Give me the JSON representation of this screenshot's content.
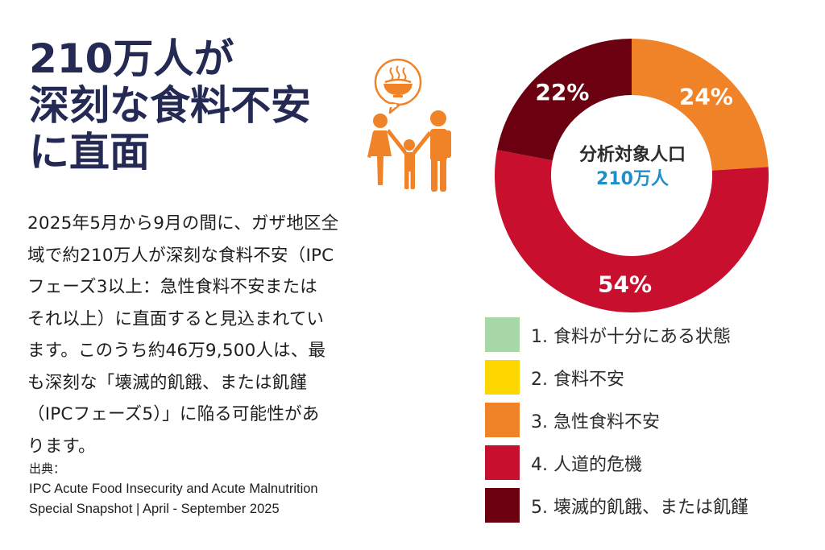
{
  "headline": {
    "lines": [
      "210万人が",
      "深刻な食料不安",
      "に直面"
    ]
  },
  "body": {
    "lines": [
      "2025年5月から9月の間に、ガザ地区全",
      "域で約210万人が深刻な食料不安（IPC",
      "フェーズ3以上：急性食料不安または",
      "それ以上）に直面すると見込まれてい",
      "ます。このうち約46万9,500人は、最",
      "も深刻な「壊滅的飢餓、または飢饉",
      "（IPCフェーズ5）」に陥る可能性があ",
      "ります。"
    ]
  },
  "source": {
    "label": "出典：",
    "lines": [
      "IPC Acute Food Insecurity and Acute Malnutrition",
      "Special Snapshot | April - September 2025"
    ]
  },
  "icons": {
    "family": "family-icon",
    "rice_bowl": "rice-bowl-icon"
  },
  "chart_data": {
    "type": "pie",
    "donut": true,
    "center_label": {
      "line1": "分析対象人口",
      "line2": "210万人"
    },
    "slices": [
      {
        "label": "1. 食料が十分にある状態",
        "value": 0,
        "color": "#a8d8a8"
      },
      {
        "label": "2. 食料不安",
        "value": 0,
        "color": "#ffd700"
      },
      {
        "label": "3. 急性食料不安",
        "value": 24,
        "value_label": "24%",
        "color": "#f08228"
      },
      {
        "label": "4. 人道的危機",
        "value": 54,
        "value_label": "54%",
        "color": "#c8102e"
      },
      {
        "label": "5. 壊滅的飢餓、または飢饉",
        "value": 22,
        "value_label": "22%",
        "color": "#6b0010"
      }
    ]
  }
}
